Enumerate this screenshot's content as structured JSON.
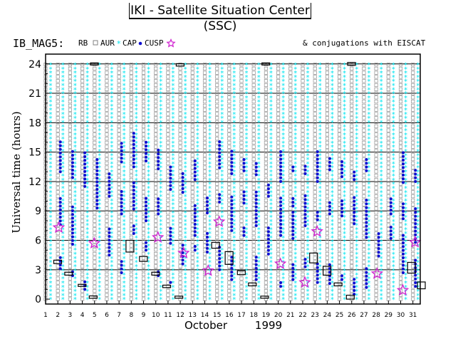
{
  "page": {
    "title": "IKI - Satellite Situation Center (SSC)"
  },
  "legend": {
    "dataset": "IB_MAG5:",
    "items": [
      "RB",
      "AUR",
      "CAP",
      "CUSP"
    ],
    "note": "& conjugations with EISCAT"
  },
  "colors": {
    "rb": "#909090",
    "aur": "#ff9aa2",
    "cap": "#00e5f0",
    "cusp": "#1010d0",
    "eiscat": "#d020d0",
    "axis": "#000000"
  },
  "chart_data": {
    "type": "scatter",
    "title": "",
    "ylabel": "Universal time (hours)",
    "xlabel": "October",
    "year_label": "1999",
    "xlim": [
      1,
      31.6
    ],
    "ylim": [
      -0.5,
      25
    ],
    "xticks": [
      1,
      2,
      3,
      4,
      5,
      6,
      7,
      8,
      9,
      10,
      11,
      12,
      13,
      14,
      15,
      16,
      17,
      18,
      19,
      20,
      21,
      22,
      23,
      24,
      25,
      26,
      27,
      28,
      29,
      30,
      31
    ],
    "yticks": [
      0,
      3,
      6,
      9,
      12,
      15,
      18,
      21,
      24
    ],
    "grid": true,
    "cusp_intervals": [
      {
        "day": 2,
        "ranges": [
          [
            3.1,
            4.3
          ],
          [
            7.6,
            10.6
          ],
          [
            13.0,
            16.1
          ]
        ]
      },
      {
        "day": 3,
        "ranges": [
          [
            2.4,
            3.0
          ],
          [
            5.6,
            9.5
          ],
          [
            12.4,
            15.3
          ]
        ]
      },
      {
        "day": 4,
        "ranges": [
          [
            1.0,
            2.0
          ],
          [
            11.5,
            15.1
          ]
        ]
      },
      {
        "day": 5,
        "ranges": [
          [
            9.3,
            14.4
          ]
        ]
      },
      {
        "day": 6,
        "ranges": [
          [
            4.5,
            7.2
          ],
          [
            10.5,
            12.9
          ]
        ]
      },
      {
        "day": 7,
        "ranges": [
          [
            2.7,
            3.9
          ],
          [
            8.7,
            11.1
          ],
          [
            14.0,
            16.1
          ]
        ]
      },
      {
        "day": 8,
        "ranges": [
          [
            6.7,
            7.5
          ],
          [
            9.2,
            12.0
          ],
          [
            13.5,
            17.0
          ]
        ]
      },
      {
        "day": 9,
        "ranges": [
          [
            5.0,
            6.0
          ],
          [
            8.0,
            10.5
          ],
          [
            14.1,
            16.0
          ]
        ]
      },
      {
        "day": 10,
        "ranges": [
          [
            2.4,
            3.1
          ],
          [
            8.7,
            10.3
          ],
          [
            13.3,
            15.4
          ]
        ]
      },
      {
        "day": 11,
        "ranges": [
          [
            1.7,
            2.0
          ],
          [
            5.7,
            7.5
          ],
          [
            11.2,
            13.5
          ]
        ]
      },
      {
        "day": 12,
        "ranges": [
          [
            3.6,
            5.7
          ],
          [
            10.9,
            12.9
          ]
        ]
      },
      {
        "day": 13,
        "ranges": [
          [
            5.0,
            5.5
          ],
          [
            6.5,
            9.8
          ],
          [
            12.2,
            14.2
          ]
        ]
      },
      {
        "day": 14,
        "ranges": [
          [
            4.8,
            7.0
          ],
          [
            8.8,
            10.6
          ]
        ]
      },
      {
        "day": 15,
        "ranges": [
          [
            3.0,
            5.4
          ],
          [
            9.9,
            10.8
          ],
          [
            13.4,
            16.4
          ]
        ]
      },
      {
        "day": 16,
        "ranges": [
          [
            2.0,
            4.3
          ],
          [
            7.0,
            10.7
          ],
          [
            12.8,
            15.3
          ]
        ]
      },
      {
        "day": 17,
        "ranges": [
          [
            6.5,
            7.4
          ],
          [
            9.8,
            11.1
          ],
          [
            13.1,
            14.6
          ]
        ]
      },
      {
        "day": 18,
        "ranges": [
          [
            2.0,
            4.5
          ],
          [
            7.5,
            11.1
          ],
          [
            12.7,
            14.2
          ]
        ]
      },
      {
        "day": 19,
        "ranges": [
          [
            4.6,
            7.4
          ],
          [
            10.5,
            11.9
          ]
        ]
      },
      {
        "day": 20,
        "ranges": [
          [
            1.3,
            2.0
          ],
          [
            6.5,
            10.4
          ],
          [
            12.0,
            15.4
          ]
        ]
      },
      {
        "day": 21,
        "ranges": [
          [
            2.0,
            3.7
          ],
          [
            6.2,
            8.9
          ],
          [
            9.5,
            10.6
          ],
          [
            13.1,
            13.8
          ]
        ]
      },
      {
        "day": 22,
        "ranges": [
          [
            3.3,
            4.2
          ],
          [
            7.5,
            10.6
          ],
          [
            12.8,
            13.9
          ]
        ]
      },
      {
        "day": 23,
        "ranges": [
          [
            1.7,
            3.7
          ],
          [
            8.1,
            9.2
          ],
          [
            12.0,
            15.1
          ]
        ]
      },
      {
        "day": 24,
        "ranges": [
          [
            1.6,
            3.6
          ],
          [
            8.7,
            9.9
          ],
          [
            13.2,
            14.6
          ]
        ]
      },
      {
        "day": 25,
        "ranges": [
          [
            2.0,
            2.6
          ],
          [
            8.5,
            10.1
          ],
          [
            12.5,
            14.2
          ]
        ]
      },
      {
        "day": 26,
        "ranges": [
          [
            0.5,
            2.3
          ],
          [
            7.7,
            10.4
          ],
          [
            12.2,
            13.2
          ]
        ]
      },
      {
        "day": 27,
        "ranges": [
          [
            1.2,
            3.3
          ],
          [
            6.3,
            10.3
          ],
          [
            13.1,
            14.4
          ]
        ]
      },
      {
        "day": 28,
        "ranges": [
          [
            4.4,
            7.0
          ]
        ]
      },
      {
        "day": 29,
        "ranges": [
          [
            6.2,
            7.4
          ],
          [
            8.7,
            10.4
          ]
        ]
      },
      {
        "day": 30,
        "ranges": [
          [
            2.7,
            6.8
          ],
          [
            8.2,
            10.0
          ],
          [
            11.9,
            15.0
          ]
        ]
      },
      {
        "day": 31,
        "ranges": [
          [
            1.3,
            4.0
          ],
          [
            5.8,
            9.5
          ],
          [
            12.0,
            13.5
          ]
        ]
      }
    ],
    "eiscat_conjugations": [
      {
        "day": 1.9,
        "ut": 7.3
      },
      {
        "day": 4.8,
        "ut": 5.7
      },
      {
        "day": 10.0,
        "ut": 6.3
      },
      {
        "day": 12.1,
        "ut": 4.7
      },
      {
        "day": 14.1,
        "ut": 2.9
      },
      {
        "day": 15.0,
        "ut": 7.9
      },
      {
        "day": 20.0,
        "ut": 3.6
      },
      {
        "day": 22.0,
        "ut": 1.7
      },
      {
        "day": 23.0,
        "ut": 6.9
      },
      {
        "day": 27.9,
        "ut": 2.6
      },
      {
        "day": 30.0,
        "ut": 0.9
      },
      {
        "day": 31.0,
        "ut": 5.8
      }
    ],
    "orbit_boxes": [
      {
        "day": 1.9,
        "ut": 3.8,
        "h": 0.35
      },
      {
        "day": 2.8,
        "ut": 2.6,
        "h": 0.3
      },
      {
        "day": 3.9,
        "ut": 1.4,
        "h": 0.2
      },
      {
        "day": 4.8,
        "ut": 0.2,
        "h": 0.25
      },
      {
        "day": 4.9,
        "ut": 24.0,
        "h": 0.2
      },
      {
        "day": 7.8,
        "ut": 5.4,
        "h": 1.2
      },
      {
        "day": 8.9,
        "ut": 4.1,
        "h": 0.5
      },
      {
        "day": 9.9,
        "ut": 2.6,
        "h": 0.3
      },
      {
        "day": 10.8,
        "ut": 1.3,
        "h": 0.25
      },
      {
        "day": 11.8,
        "ut": 0.2,
        "h": 0.2
      },
      {
        "day": 11.9,
        "ut": 23.9,
        "h": 0.25
      },
      {
        "day": 14.8,
        "ut": 5.5,
        "h": 0.6
      },
      {
        "day": 15.9,
        "ut": 4.2,
        "h": 1.3
      },
      {
        "day": 16.9,
        "ut": 2.7,
        "h": 0.4
      },
      {
        "day": 17.8,
        "ut": 1.5,
        "h": 0.3
      },
      {
        "day": 18.8,
        "ut": 0.2,
        "h": 0.2
      },
      {
        "day": 18.9,
        "ut": 24.0,
        "h": 0.2
      },
      {
        "day": 22.8,
        "ut": 4.2,
        "h": 1.0
      },
      {
        "day": 23.9,
        "ut": 2.9,
        "h": 0.9
      },
      {
        "day": 24.8,
        "ut": 1.5,
        "h": 0.3
      },
      {
        "day": 25.8,
        "ut": 0.2,
        "h": 0.4
      },
      {
        "day": 25.9,
        "ut": 24.0,
        "h": 0.3
      },
      {
        "day": 30.8,
        "ut": 3.2,
        "h": 1.1
      },
      {
        "day": 31.6,
        "ut": 1.4,
        "h": 0.7
      }
    ]
  }
}
